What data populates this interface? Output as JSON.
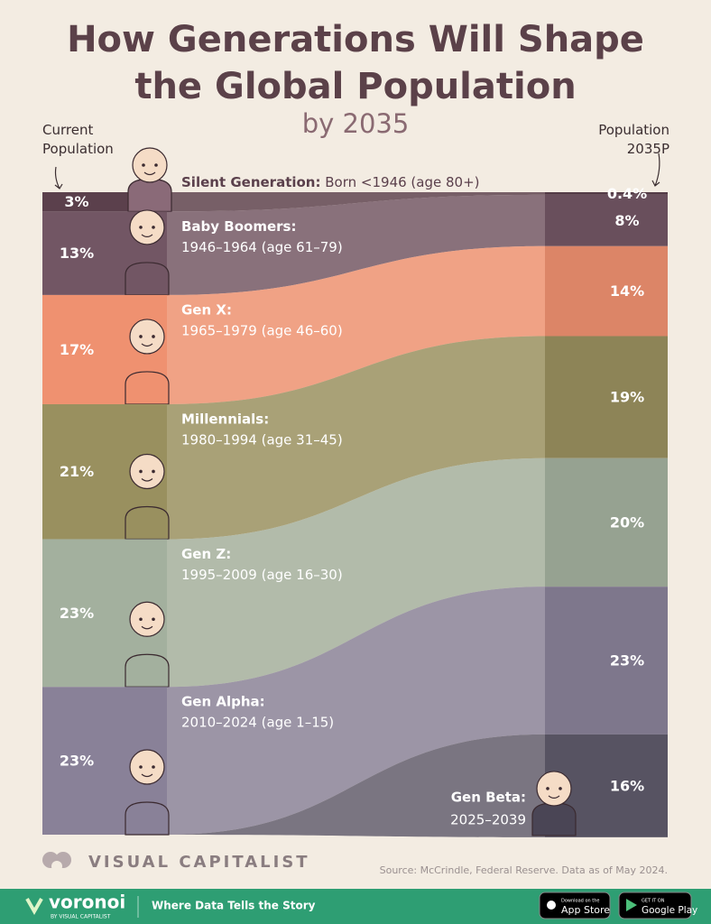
{
  "chart_data": {
    "type": "alluvial",
    "title": "How Generations Will Shape the Global Population",
    "subtitle": "by 2035",
    "categories": [
      "Current Population",
      "Population 2035P"
    ],
    "ylim": [
      0,
      100
    ],
    "series": [
      {
        "name": "Silent Generation:",
        "label": "Born <1946 (age 80+)",
        "color": "#5b404c",
        "values": [
          3,
          0.4
        ],
        "value_labels": [
          "3%",
          "0.4%"
        ]
      },
      {
        "name": "Baby Boomers:",
        "label": "1946–1964 (age 61–79)",
        "color": "#725664",
        "values": [
          13,
          8
        ],
        "value_labels": [
          "13%",
          "8%"
        ]
      },
      {
        "name": "Gen X:",
        "label": "1965–1979 (age 46–60)",
        "color": "#ef9170",
        "values": [
          17,
          14
        ],
        "value_labels": [
          "17%",
          "14%"
        ]
      },
      {
        "name": "Millennials:",
        "label": "1980–1994 (age 31–45)",
        "color": "#99905f",
        "values": [
          21,
          19
        ],
        "value_labels": [
          "21%",
          "19%"
        ]
      },
      {
        "name": "Gen Z:",
        "label": "1995–2009 (age 16–30)",
        "color": "#a3b09e",
        "values": [
          23,
          20
        ],
        "value_labels": [
          "23%",
          "20%"
        ]
      },
      {
        "name": "Gen Alpha:",
        "label": "2010–2024 (age 1–15)",
        "color": "#898198",
        "values": [
          23,
          23
        ],
        "value_labels": [
          "23%",
          "23%"
        ]
      },
      {
        "name": "Gen Beta:",
        "label": "2025–2039",
        "color": "#5f5a6b",
        "values": [
          null,
          16
        ],
        "value_labels": [
          null,
          "16%"
        ]
      }
    ]
  },
  "brand": "VISUAL CAPITALIST",
  "source": "Source: McCrindle, Federal Reserve. Data as of May 2024.",
  "footer": {
    "logo": "voronoi",
    "logo_sub": "BY VISUAL CAPITALIST",
    "tagline": "Where Data Tells the Story",
    "app_store": {
      "small": "Download on the",
      "big": "App Store"
    },
    "google_play": {
      "small": "GET IT ON",
      "big": "Google Play"
    }
  }
}
